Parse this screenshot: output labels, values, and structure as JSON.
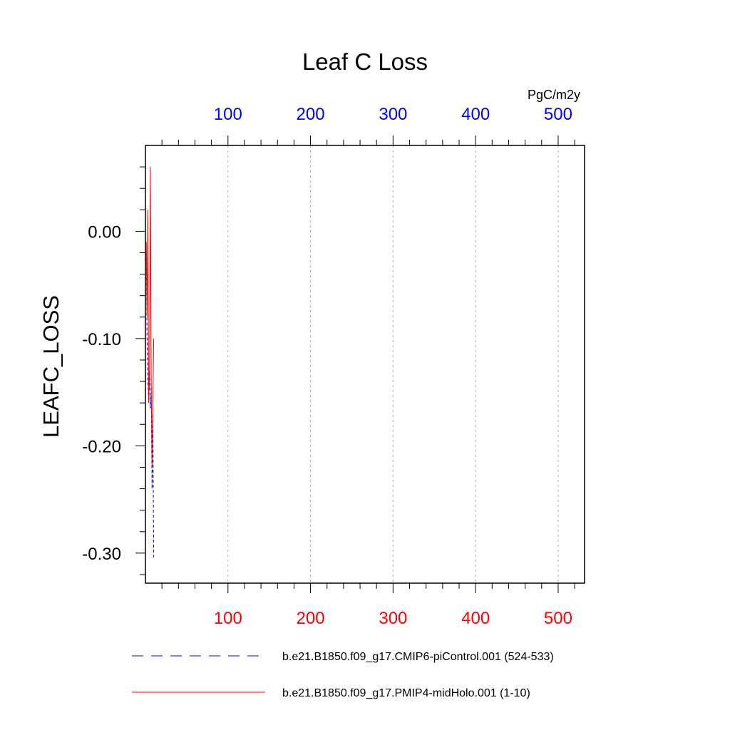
{
  "chart_data": {
    "type": "line",
    "title": "Leaf C Loss",
    "units": "PgC/m2y",
    "ylabel": "LEAFC_LOSS",
    "xlabel": "",
    "x_top_ticks": [
      "100",
      "200",
      "300",
      "400",
      "500"
    ],
    "x_bottom_ticks": [
      "100",
      "200",
      "300",
      "400",
      "500"
    ],
    "y_ticks": [
      "0.00",
      "-0.10",
      "-0.20",
      "-0.30"
    ],
    "xlim": [
      0,
      532
    ],
    "ylim": [
      -0.328,
      0.08
    ],
    "top_axis_color": "#0000ff",
    "bottom_axis_color": "#ff0000",
    "grid": "vertical dashed at major x ticks",
    "legend_position": "bottom",
    "series": [
      {
        "name": "b.e21.B1850.f09_g17.CMIP6-piControl.001 (524-533)",
        "color": "#0000ff",
        "dash": "dashed",
        "x": [
          1,
          2,
          3,
          4,
          5,
          6,
          7,
          8,
          9,
          10
        ],
        "values": [
          -0.02,
          -0.1,
          -0.14,
          -0.16,
          -0.13,
          -0.165,
          -0.15,
          -0.24,
          -0.17,
          -0.305
        ]
      },
      {
        "name": "b.e21.B1850.f09_g17.PMIP4-midHolo.001 (1-10)",
        "color": "#ff0000",
        "dash": "solid",
        "x": [
          1,
          2,
          3,
          4,
          5,
          6,
          7,
          8,
          9,
          10
        ],
        "values": [
          -0.01,
          -0.08,
          0.02,
          -0.16,
          -0.13,
          0.06,
          -0.14,
          -0.22,
          -0.16,
          -0.1
        ]
      }
    ]
  }
}
